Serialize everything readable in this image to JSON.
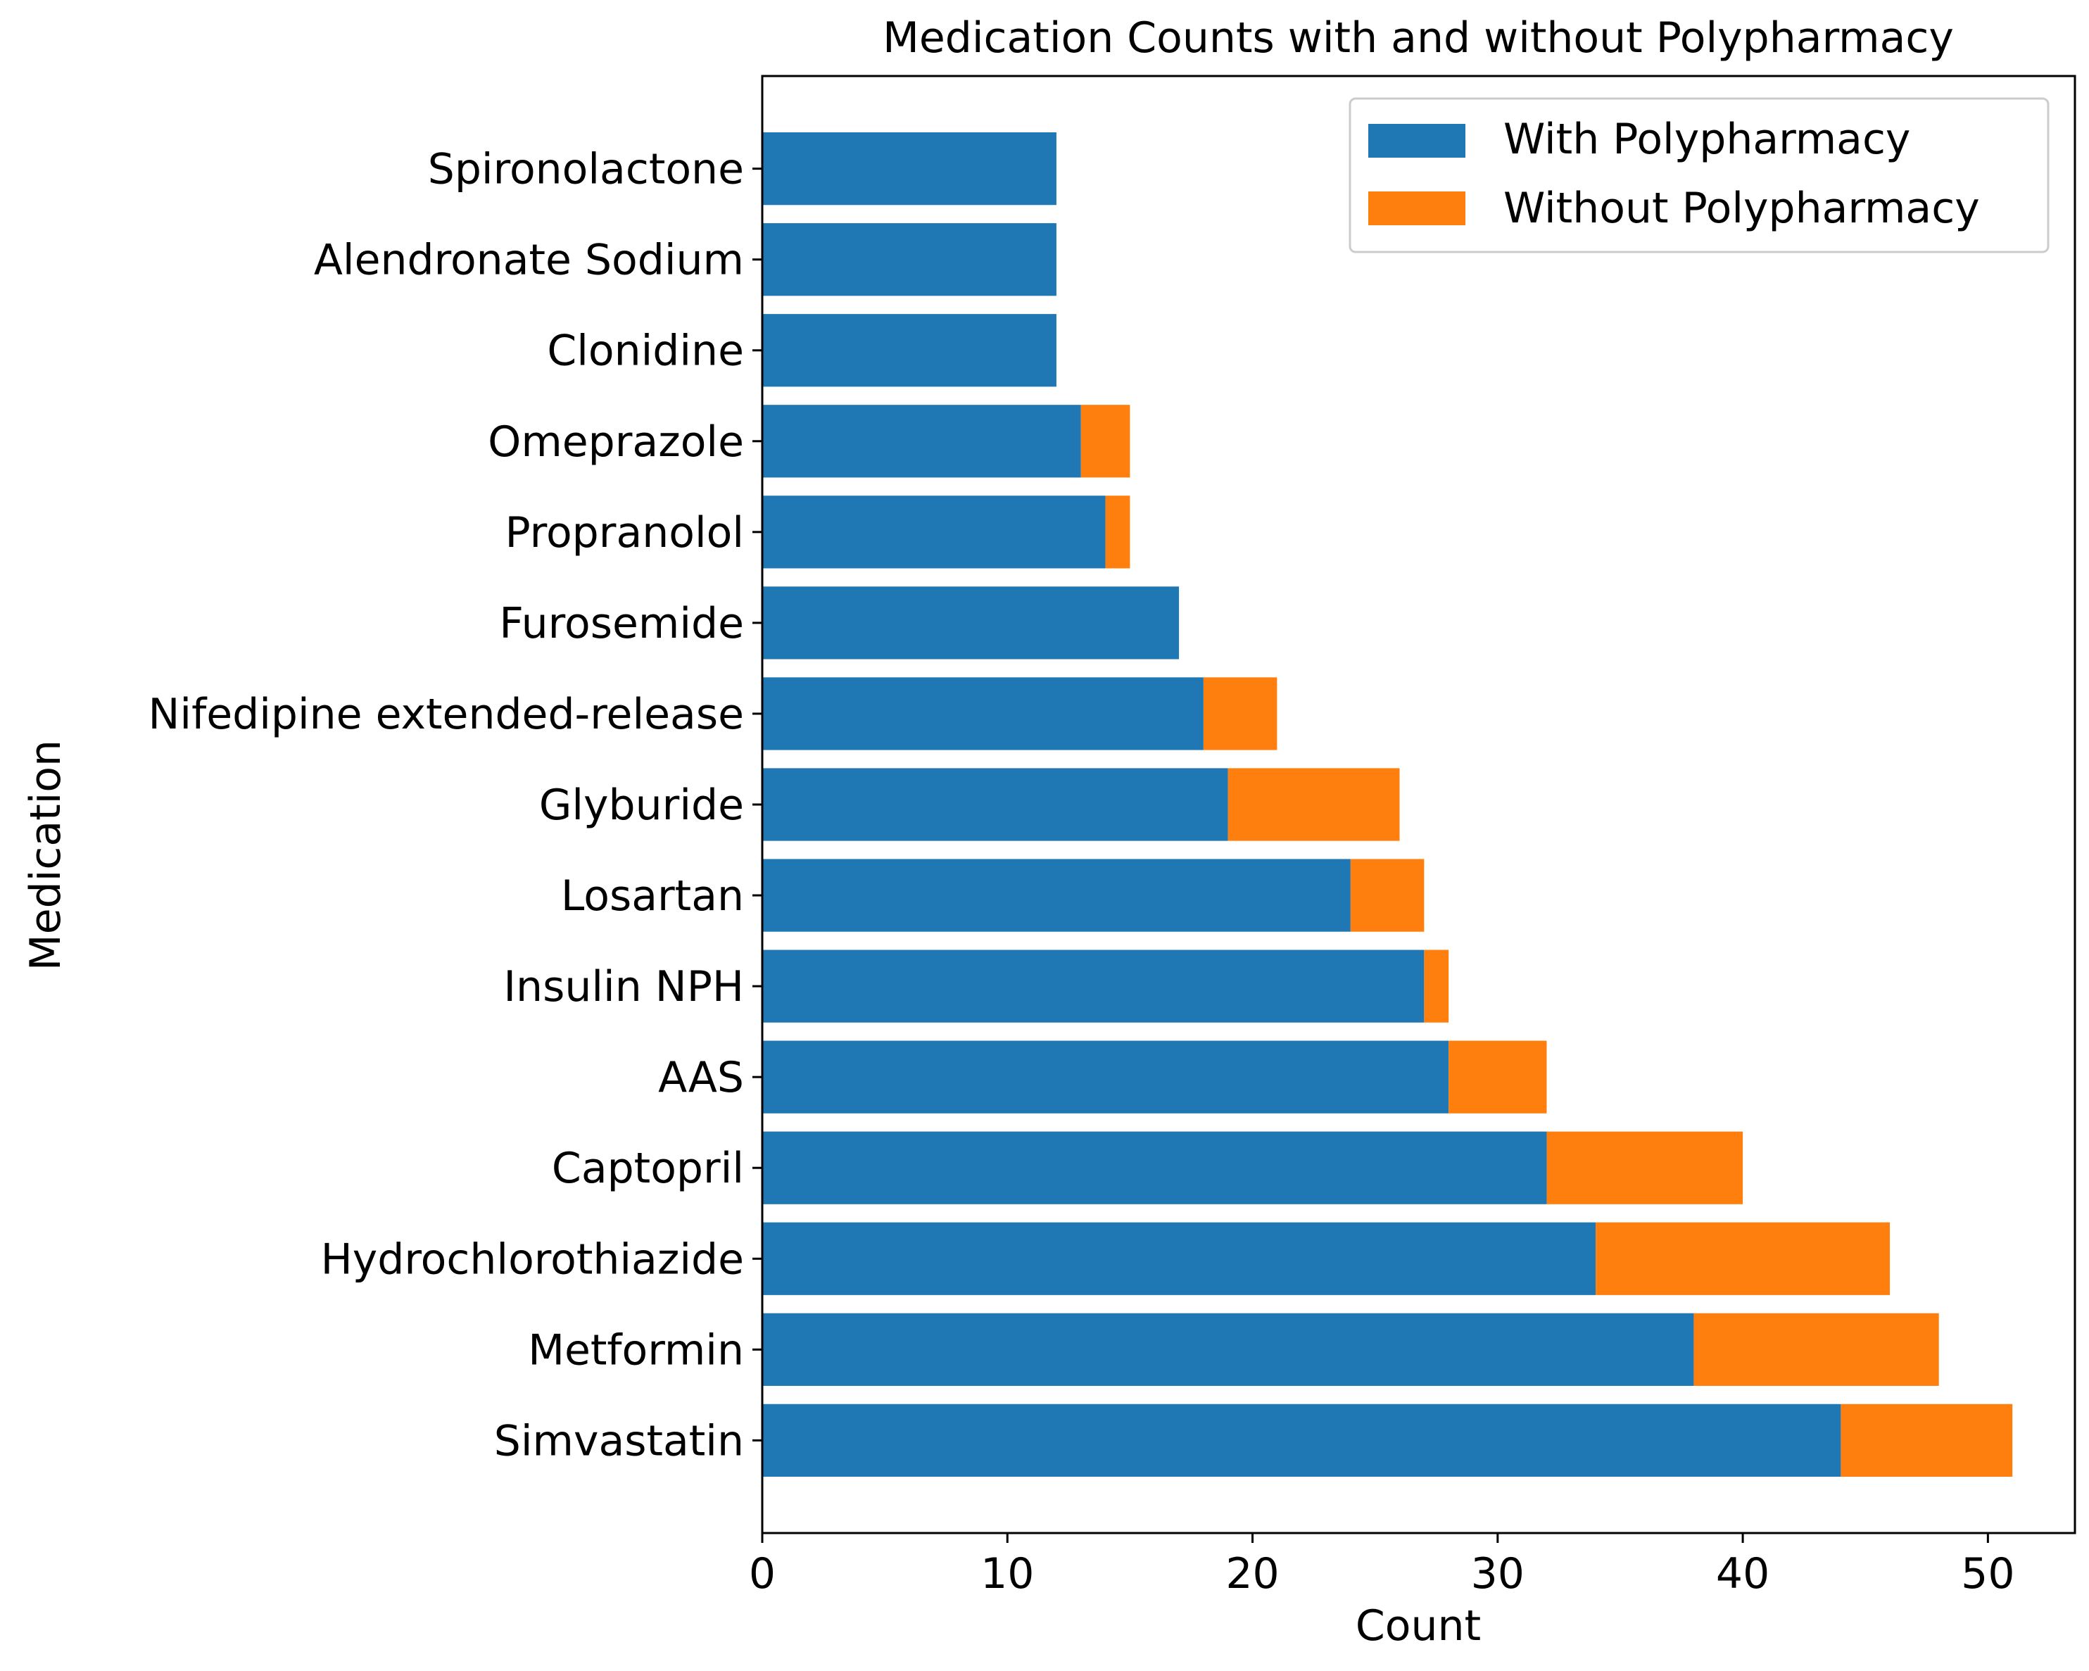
{
  "chart_data": {
    "type": "bar",
    "orientation": "horizontal",
    "stacked": true,
    "title": "Medication Counts with and without Polypharmacy",
    "xlabel": "Count",
    "ylabel": "Medication",
    "categories": [
      "Simvastatin",
      "Metformin",
      "Hydrochlorothiazide",
      "Captopril",
      "AAS",
      "Insulin NPH",
      "Losartan",
      "Glyburide",
      "Nifedipine extended-release",
      "Furosemide",
      "Propranolol",
      "Omeprazole",
      "Clonidine",
      "Alendronate Sodium",
      "Spironolactone"
    ],
    "series": [
      {
        "name": "With Polypharmacy",
        "color": "#1f77b4",
        "values": [
          44,
          38,
          34,
          32,
          28,
          27,
          24,
          19,
          18,
          17,
          14,
          13,
          12,
          12,
          12
        ]
      },
      {
        "name": "Without Polypharmacy",
        "color": "#ff7f0e",
        "values": [
          7,
          10,
          12,
          8,
          4,
          1,
          3,
          7,
          3,
          0,
          1,
          2,
          0,
          0,
          0
        ]
      }
    ],
    "xlim": [
      0,
      53.55
    ],
    "xticks": [
      0,
      10,
      20,
      30,
      40,
      50
    ],
    "grid": false,
    "legend": "top-right"
  }
}
